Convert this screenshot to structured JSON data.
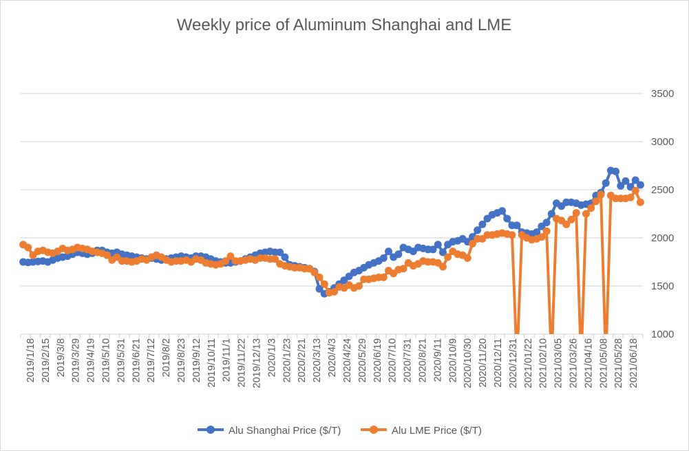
{
  "chart_data": {
    "type": "line",
    "title": "Weekly price of Aluminum Shanghai and LME",
    "xlabel": "",
    "ylabel": "",
    "ylim": [
      1000,
      3500
    ],
    "yticks": [
      1000,
      1500,
      2000,
      2500,
      3000,
      3500
    ],
    "y_axis_side": "right",
    "grid": true,
    "legend_position": "bottom",
    "x_tick_labels": [
      "2019/1/18",
      "2019/2/15",
      "2019/3/8",
      "2019/3/29",
      "2019/4/19",
      "2019/5/10",
      "2019/5/31",
      "2019/6/21",
      "2019/7/12",
      "2019/8/2",
      "2019/8/23",
      "2019/9/12",
      "2019/10/11",
      "2019/11/1",
      "2019/11/22",
      "2019/12/13",
      "2020/1/3",
      "2020/1/23",
      "2020/2/21",
      "2020/3/13",
      "2020/4/3",
      "2020/4/24",
      "2020/5/29",
      "2020/6/19",
      "2020/7/10",
      "2020/7/31",
      "2020/8/21",
      "2020/9/11",
      "2020/10/9",
      "2020/10/30",
      "2020/11/20",
      "2020/12/11",
      "2020/12/31",
      "2021/01/22",
      "2021/02/10",
      "2021/03/05",
      "2021/03/26",
      "2021/04/16",
      "2021/05/08",
      "2021/05/28",
      "2021/06/18"
    ],
    "series": [
      {
        "name": "Alu Shanghai Price ($/T)",
        "color": "#4472C4",
        "values": [
          1750,
          1745,
          1750,
          1755,
          1760,
          1750,
          1770,
          1790,
          1800,
          1810,
          1830,
          1850,
          1840,
          1830,
          1840,
          1870,
          1870,
          1850,
          1840,
          1850,
          1830,
          1820,
          1810,
          1800,
          1790,
          1780,
          1790,
          1780,
          1770,
          1780,
          1790,
          1800,
          1810,
          1800,
          1790,
          1810,
          1810,
          1800,
          1780,
          1760,
          1750,
          1740,
          1740,
          1750,
          1760,
          1780,
          1800,
          1820,
          1840,
          1850,
          1860,
          1850,
          1850,
          1800,
          1720,
          1710,
          1700,
          1690,
          1680,
          1650,
          1470,
          1420,
          1440,
          1480,
          1520,
          1560,
          1600,
          1640,
          1660,
          1690,
          1720,
          1740,
          1760,
          1790,
          1860,
          1800,
          1830,
          1900,
          1880,
          1860,
          1900,
          1890,
          1880,
          1880,
          1930,
          1850,
          1930,
          1960,
          1970,
          1990,
          1960,
          2010,
          2080,
          2140,
          2200,
          2240,
          2260,
          2280,
          2200,
          2130,
          2130,
          2060,
          2050,
          2040,
          2060,
          2120,
          2160,
          2250,
          2360,
          2330,
          2370,
          2370,
          2360,
          2340,
          2350,
          2360,
          2440,
          2470,
          2570,
          2700,
          2690,
          2540,
          2590,
          2530,
          2600,
          2550
        ]
      },
      {
        "name": "Alu LME Price ($/T)",
        "color": "#ED7D31",
        "values": [
          1930,
          1900,
          1820,
          1860,
          1870,
          1850,
          1840,
          1860,
          1890,
          1870,
          1880,
          1900,
          1890,
          1880,
          1860,
          1850,
          1840,
          1820,
          1770,
          1800,
          1760,
          1760,
          1750,
          1760,
          1780,
          1770,
          1800,
          1820,
          1800,
          1770,
          1750,
          1760,
          1760,
          1770,
          1750,
          1780,
          1770,
          1740,
          1730,
          1720,
          1730,
          1760,
          1810,
          1760,
          1760,
          1770,
          1780,
          1770,
          1790,
          1790,
          1780,
          1780,
          1730,
          1710,
          1700,
          1690,
          1690,
          1680,
          1680,
          1640,
          1590,
          1520,
          1430,
          1440,
          1490,
          1480,
          1510,
          1480,
          1500,
          1570,
          1570,
          1580,
          1590,
          1590,
          1660,
          1630,
          1670,
          1680,
          1740,
          1710,
          1730,
          1760,
          1750,
          1750,
          1740,
          1700,
          1800,
          1860,
          1830,
          1820,
          1790,
          1940,
          1990,
          1990,
          2030,
          2030,
          2040,
          2050,
          2040,
          2030,
          0,
          2030,
          2000,
          1980,
          1990,
          2010,
          2070,
          0,
          2200,
          2180,
          2140,
          2190,
          2260,
          0,
          2250,
          2310,
          2380,
          2450,
          0,
          2440,
          2410,
          2410,
          2410,
          2420,
          2490,
          2370
        ]
      }
    ]
  }
}
